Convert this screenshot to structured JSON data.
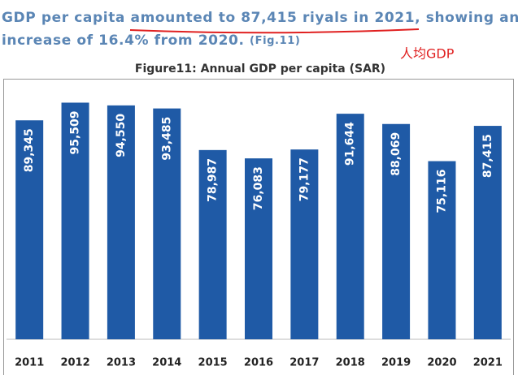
{
  "header": {
    "line1": "GDP per capita amounted to 87,415 riyals in 2021, showing an",
    "line2": "increase of 16.4% from 2020.",
    "ref": "(Fig.11)",
    "annotation": "人均GDP"
  },
  "chart_data": {
    "type": "bar",
    "title": "Figure11: Annual GDP per capita (SAR)",
    "categories": [
      "2011",
      "2012",
      "2013",
      "2014",
      "2015",
      "2016",
      "2017",
      "2018",
      "2019",
      "2020",
      "2021"
    ],
    "values": [
      89345,
      95509,
      94550,
      93485,
      78987,
      76083,
      79177,
      91644,
      88069,
      75116,
      87415
    ],
    "value_labels": [
      "89,345",
      "95,509",
      "94,550",
      "93,485",
      "78,987",
      "76,083",
      "79,177",
      "91,644",
      "88,069",
      "75,116",
      "87,415"
    ],
    "color": "#1f5aa6",
    "ylim": [
      13000,
      103000
    ]
  }
}
